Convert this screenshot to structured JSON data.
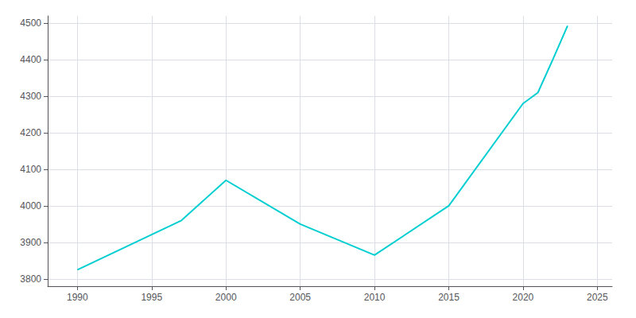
{
  "chart_data": {
    "type": "line",
    "x": [
      1990,
      1997,
      2000,
      2005,
      2010,
      2015,
      2020,
      2021,
      2022,
      2023
    ],
    "values": [
      3825,
      3960,
      4070,
      3950,
      3865,
      4000,
      4280,
      4310,
      4400,
      4493
    ],
    "color": "#00CED1",
    "xlim": [
      1988,
      2026
    ],
    "ylim": [
      3780,
      4520
    ],
    "xticks": [
      1990,
      1995,
      2000,
      2005,
      2010,
      2015,
      2020,
      2025
    ],
    "yticks": [
      3800,
      3900,
      4000,
      4100,
      4200,
      4300,
      4400,
      4500
    ],
    "grid": true
  }
}
